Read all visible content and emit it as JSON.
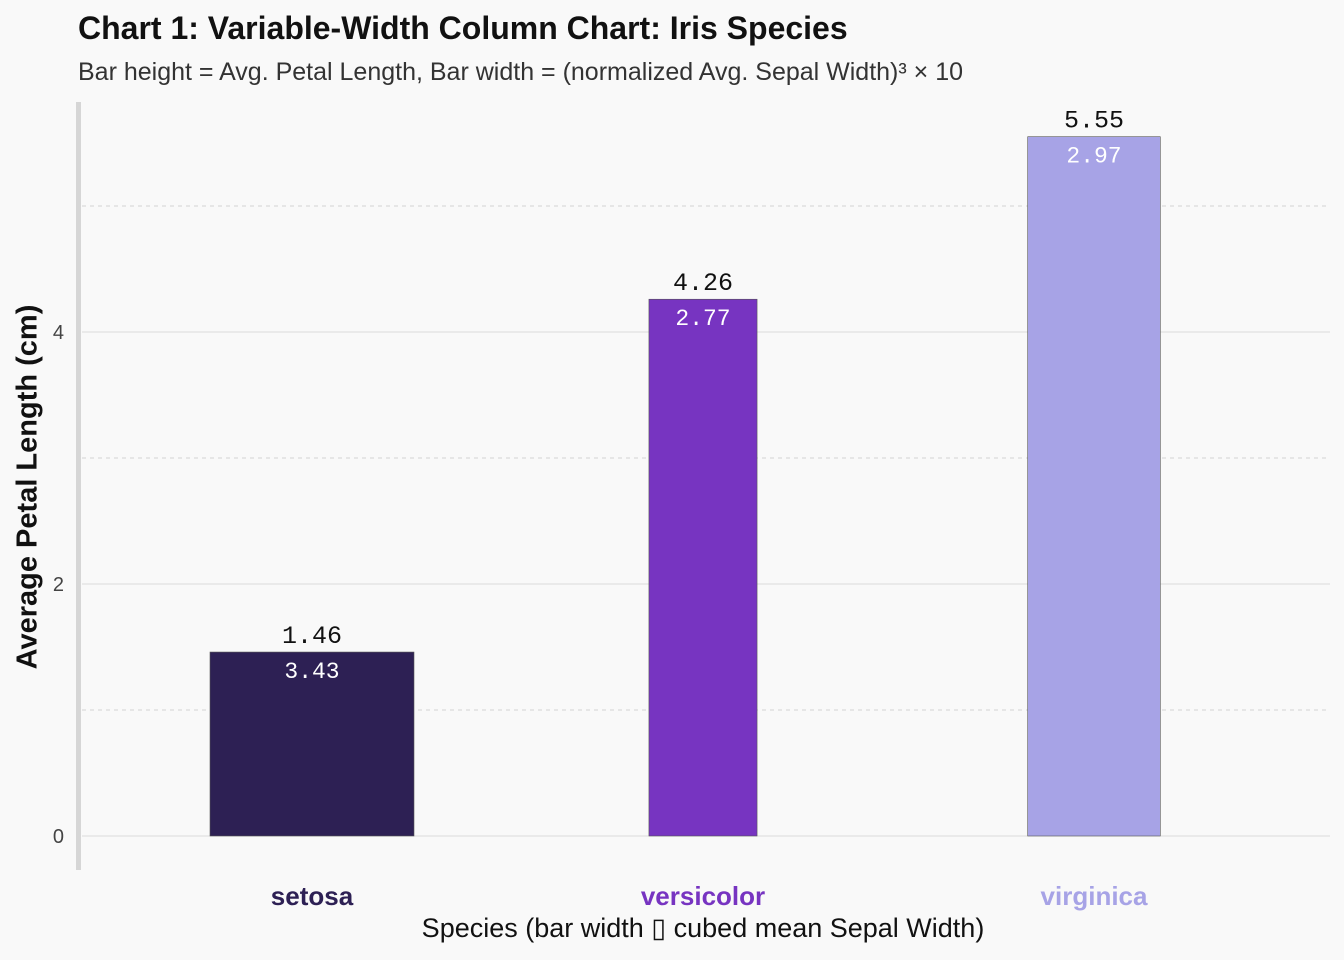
{
  "chart_data": {
    "type": "bar",
    "title": "Chart 1: Variable-Width Column Chart: Iris Species",
    "subtitle": "Bar height = Avg. Petal Length, Bar width = (normalized Avg. Sepal Width)³ × 10",
    "xlabel": "Species (bar width ▯ cubed mean Sepal Width)",
    "ylabel": "Average Petal Length (cm)",
    "categories": [
      "setosa",
      "versicolor",
      "virginica"
    ],
    "values": [
      1.46,
      4.26,
      5.55
    ],
    "value_labels": [
      "1.46",
      "4.26",
      "5.55"
    ],
    "sepal_width_labels": [
      "3.43",
      "2.77",
      "2.97"
    ],
    "sepal_width": [
      3.43,
      2.77,
      2.97
    ],
    "relative_widths": [
      1.0,
      0.53,
      0.65
    ],
    "colors": [
      "#2d2054",
      "#7734c1",
      "#a7a3e6"
    ],
    "ylim": [
      0,
      5.75
    ],
    "yticks": [
      0,
      2,
      4
    ],
    "yticks_labels": [
      "0",
      "2",
      "4"
    ],
    "minor_yticks": [
      1,
      3,
      5
    ],
    "grid": true,
    "legend": "none"
  }
}
